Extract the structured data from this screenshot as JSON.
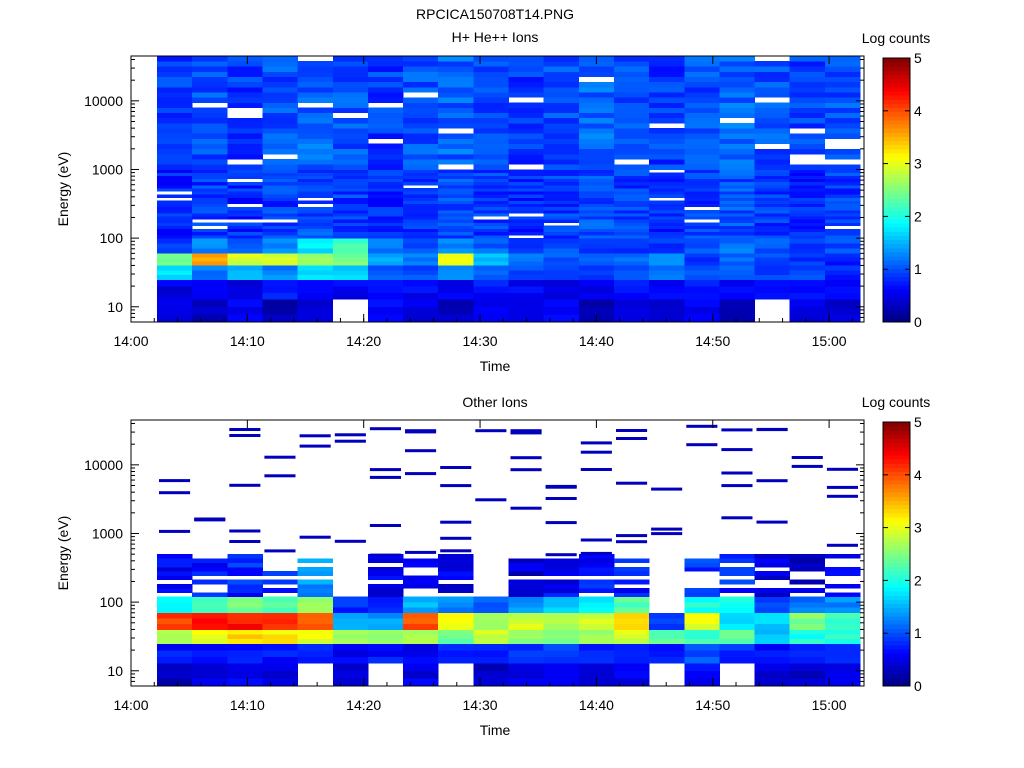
{
  "figure_title": "RPCICA150708T14.PNG",
  "chart_data": [
    {
      "type": "heatmap",
      "title": "H+ He++ Ions",
      "xlabel": "Time",
      "ylabel": "Energy (eV)",
      "x_ticks": [
        "14:00",
        "14:10",
        "14:20",
        "14:30",
        "14:40",
        "14:50",
        "15:00"
      ],
      "y_ticks": [
        "10",
        "100",
        "1000",
        "10000"
      ],
      "y_scale": "log",
      "ylim": [
        6,
        45000
      ],
      "xlim": [
        "14:00",
        "15:03"
      ],
      "colorbar": {
        "label": "Log counts",
        "ticks": [
          "0",
          "1",
          "2",
          "3",
          "4",
          "5"
        ],
        "range": [
          0,
          5
        ],
        "colormap": "jet"
      },
      "time_bins": [
        "14:02",
        "14:05",
        "14:08",
        "14:11",
        "14:14",
        "14:17",
        "14:21",
        "14:24",
        "14:27",
        "14:30",
        "14:33",
        "14:37",
        "14:40",
        "14:43",
        "14:46",
        "14:49",
        "14:53",
        "14:56",
        "14:59",
        "15:02"
      ],
      "energy_bands": [
        {
          "range_eV": "6-13",
          "log_counts": [
            0.4,
            0.3,
            0.6,
            0.2,
            0.4,
            0.0,
            0.6,
            0.5,
            0.3,
            0.5,
            0.4,
            0.6,
            0.3,
            0.4,
            0.5,
            0.6,
            0.3,
            0.0,
            0.5,
            0.4
          ]
        },
        {
          "range_eV": "13-25",
          "log_counts": [
            0.5,
            0.6,
            0.5,
            0.7,
            0.6,
            0.6,
            0.7,
            0.6,
            0.6,
            0.7,
            0.6,
            0.5,
            0.6,
            0.7,
            0.6,
            0.7,
            0.6,
            0.6,
            0.7,
            0.6
          ]
        },
        {
          "range_eV": "25-40",
          "log_counts": [
            1.8,
            1.2,
            1.5,
            1.3,
            1.7,
            1.6,
            1.1,
            1.0,
            1.4,
            1.2,
            1.0,
            0.9,
            0.8,
            1.0,
            1.2,
            1.0,
            1.0,
            0.9,
            1.0,
            0.8
          ]
        },
        {
          "range_eV": "40-60",
          "log_counts": [
            2.5,
            3.5,
            2.9,
            3.0,
            2.6,
            2.4,
            1.5,
            1.2,
            3.1,
            1.5,
            1.2,
            1.0,
            1.0,
            1.1,
            1.3,
            0.8,
            1.1,
            1.0,
            0.9,
            0.8
          ]
        },
        {
          "range_eV": "60-100",
          "log_counts": [
            0.9,
            1.3,
            1.0,
            1.3,
            1.8,
            2.2,
            1.2,
            1.0,
            1.3,
            1.1,
            0.9,
            1.0,
            0.9,
            0.9,
            0.9,
            1.0,
            1.2,
            1.0,
            0.9,
            1.0
          ]
        },
        {
          "range_eV": "100-1000",
          "log_counts": [
            0.8,
            0.9,
            0.8,
            0.9,
            1.0,
            0.9,
            0.8,
            0.9,
            1.0,
            0.9,
            0.8,
            0.9,
            1.0,
            0.9,
            0.8,
            0.9,
            1.0,
            0.9,
            0.8,
            0.9
          ]
        },
        {
          "range_eV": "1000-45000",
          "log_counts": [
            0.9,
            1.0,
            0.9,
            1.0,
            1.1,
            1.0,
            0.9,
            1.0,
            1.1,
            1.0,
            0.9,
            1.0,
            1.1,
            1.0,
            0.9,
            1.0,
            1.1,
            1.0,
            0.9,
            1.0
          ]
        }
      ]
    },
    {
      "type": "heatmap",
      "title": "Other Ions",
      "xlabel": "Time",
      "ylabel": "Energy (eV)",
      "x_ticks": [
        "14:00",
        "14:10",
        "14:20",
        "14:30",
        "14:40",
        "14:50",
        "15:00"
      ],
      "y_ticks": [
        "10",
        "100",
        "1000",
        "10000"
      ],
      "y_scale": "log",
      "ylim": [
        6,
        45000
      ],
      "xlim": [
        "14:00",
        "15:03"
      ],
      "colorbar": {
        "label": "Log counts",
        "ticks": [
          "0",
          "1",
          "2",
          "3",
          "4",
          "5"
        ],
        "range": [
          0,
          5
        ],
        "colormap": "jet"
      },
      "time_bins": [
        "14:02",
        "14:05",
        "14:08",
        "14:11",
        "14:14",
        "14:17",
        "14:21",
        "14:24",
        "14:27",
        "14:30",
        "14:33",
        "14:37",
        "14:40",
        "14:43",
        "14:46",
        "14:49",
        "14:53",
        "14:56",
        "14:59",
        "15:02"
      ],
      "energy_bands": [
        {
          "range_eV": "6-13",
          "log_counts": [
            0.3,
            0.5,
            0.6,
            0.4,
            0.0,
            0.4,
            0.0,
            0.5,
            0.0,
            0.4,
            0.5,
            0.6,
            0.4,
            0.5,
            0.0,
            0.6,
            0.0,
            0.5,
            0.4,
            0.6
          ]
        },
        {
          "range_eV": "13-25",
          "log_counts": [
            0.7,
            0.7,
            0.7,
            0.7,
            0.7,
            0.6,
            0.7,
            0.6,
            0.7,
            0.7,
            0.8,
            0.9,
            0.8,
            0.9,
            0.8,
            1.0,
            0.8,
            0.7,
            0.7,
            0.8
          ]
        },
        {
          "range_eV": "25-40",
          "log_counts": [
            2.8,
            3.0,
            3.3,
            3.2,
            3.0,
            2.6,
            2.5,
            2.8,
            2.4,
            2.9,
            2.6,
            2.4,
            2.6,
            2.9,
            2.3,
            2.2,
            2.3,
            1.6,
            2.0,
            2.1
          ]
        },
        {
          "range_eV": "40-70",
          "log_counts": [
            4.1,
            4.4,
            4.3,
            4.1,
            4.0,
            1.5,
            1.4,
            4.0,
            3.1,
            2.6,
            2.9,
            2.7,
            2.9,
            3.2,
            0.9,
            3.0,
            1.8,
            1.6,
            2.5,
            2.2
          ]
        },
        {
          "range_eV": "70-120",
          "log_counts": [
            1.8,
            2.2,
            2.4,
            2.3,
            2.7,
            0.8,
            0.7,
            1.5,
            1.3,
            1.0,
            1.4,
            1.6,
            1.8,
            2.3,
            0.0,
            2.0,
            1.9,
            1.0,
            1.2,
            1.3
          ]
        },
        {
          "range_eV": "120-500",
          "log_counts": [
            0.6,
            0.7,
            0.8,
            0.8,
            1.3,
            0.0,
            0.5,
            0.6,
            0.5,
            0.0,
            0.4,
            0.6,
            0.7,
            0.7,
            0.0,
            0.9,
            0.8,
            0.5,
            0.4,
            0.5
          ]
        }
      ],
      "sparse_high_energy_counts": "isolated single-count bins above 500 eV, log counts ≈ 0.3"
    }
  ]
}
